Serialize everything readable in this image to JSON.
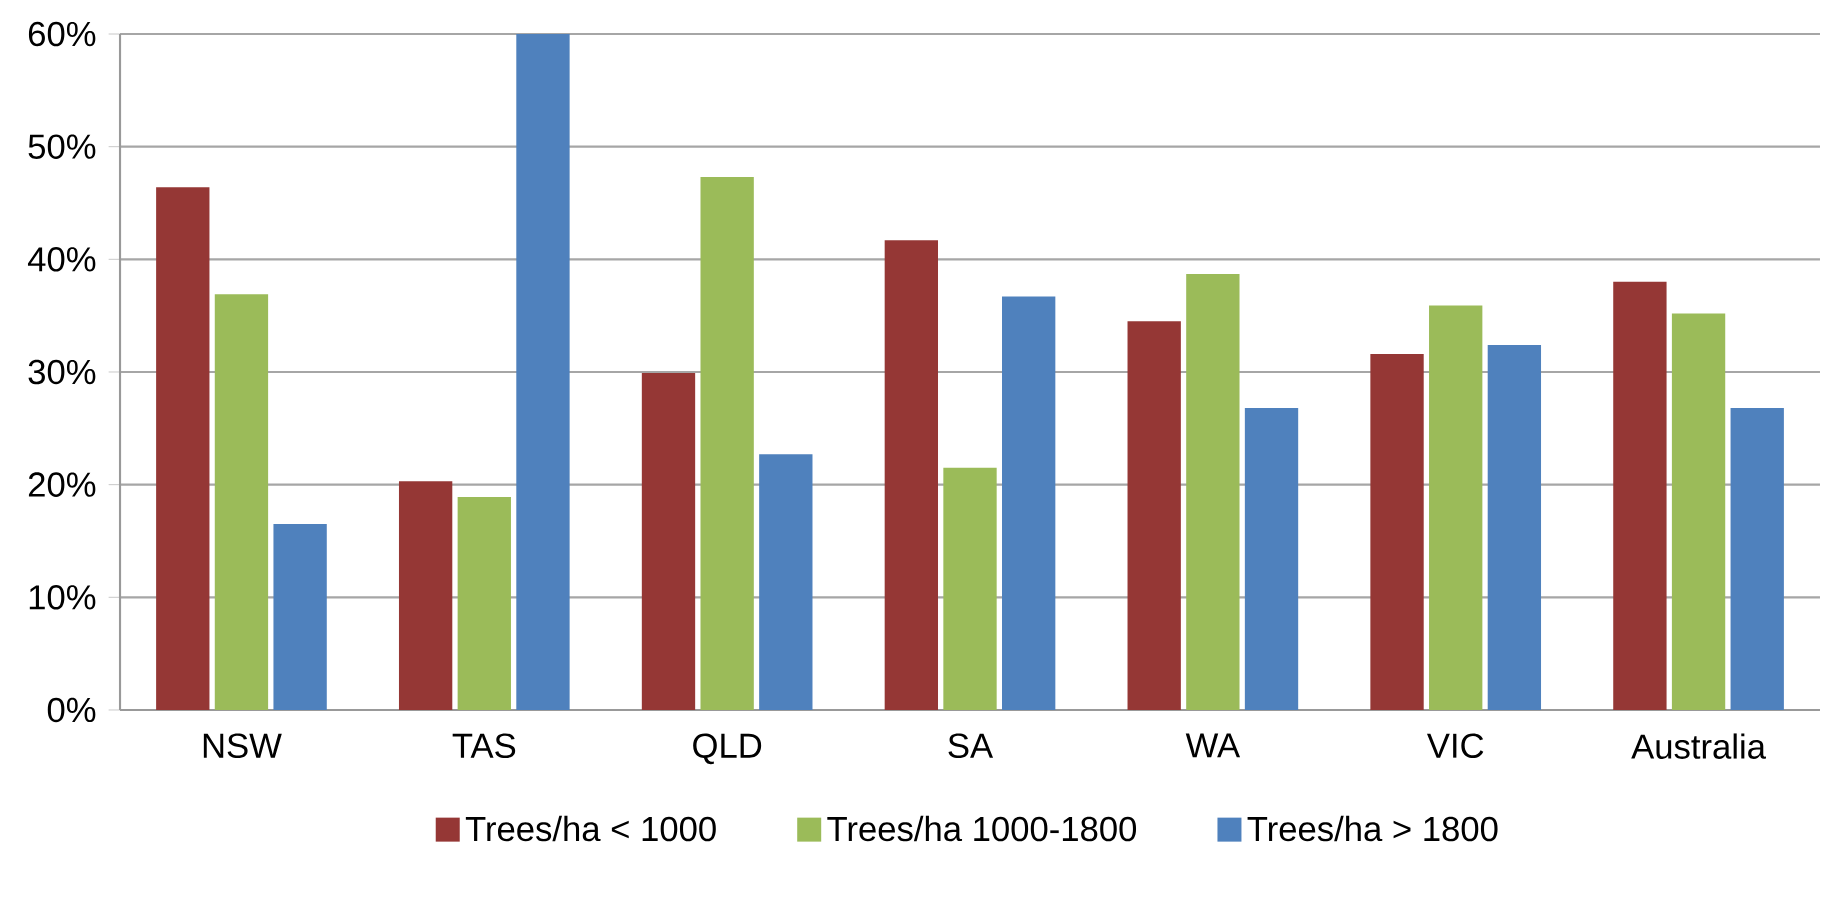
{
  "chart_data": {
    "type": "bar",
    "categories": [
      "NSW",
      "TAS",
      "QLD",
      "SA",
      "WA",
      "VIC",
      "Australia"
    ],
    "series": [
      {
        "name": "Trees/ha < 1000",
        "color": "#953735",
        "values": [
          46.4,
          20.3,
          29.9,
          41.7,
          34.5,
          31.6,
          38.0
        ]
      },
      {
        "name": "Trees/ha 1000-1800",
        "color": "#9bbb59",
        "values": [
          36.9,
          18.9,
          47.3,
          21.5,
          38.7,
          35.9,
          35.2
        ]
      },
      {
        "name": "Trees/ha > 1800",
        "color": "#4f81bd",
        "values": [
          16.5,
          60,
          22.7,
          36.7,
          26.8,
          32.4,
          26.8
        ]
      }
    ],
    "ylim": [
      0,
      60
    ],
    "yticks": [
      {
        "value": 0,
        "label": "0%"
      },
      {
        "value": 10,
        "label": "10%"
      },
      {
        "value": 20,
        "label": "20%"
      },
      {
        "value": 30,
        "label": "30%"
      },
      {
        "value": 40,
        "label": "40%"
      },
      {
        "value": 50,
        "label": "50%"
      },
      {
        "value": 60,
        "label": "60%"
      }
    ],
    "grid": "y",
    "legend": "bottom"
  }
}
